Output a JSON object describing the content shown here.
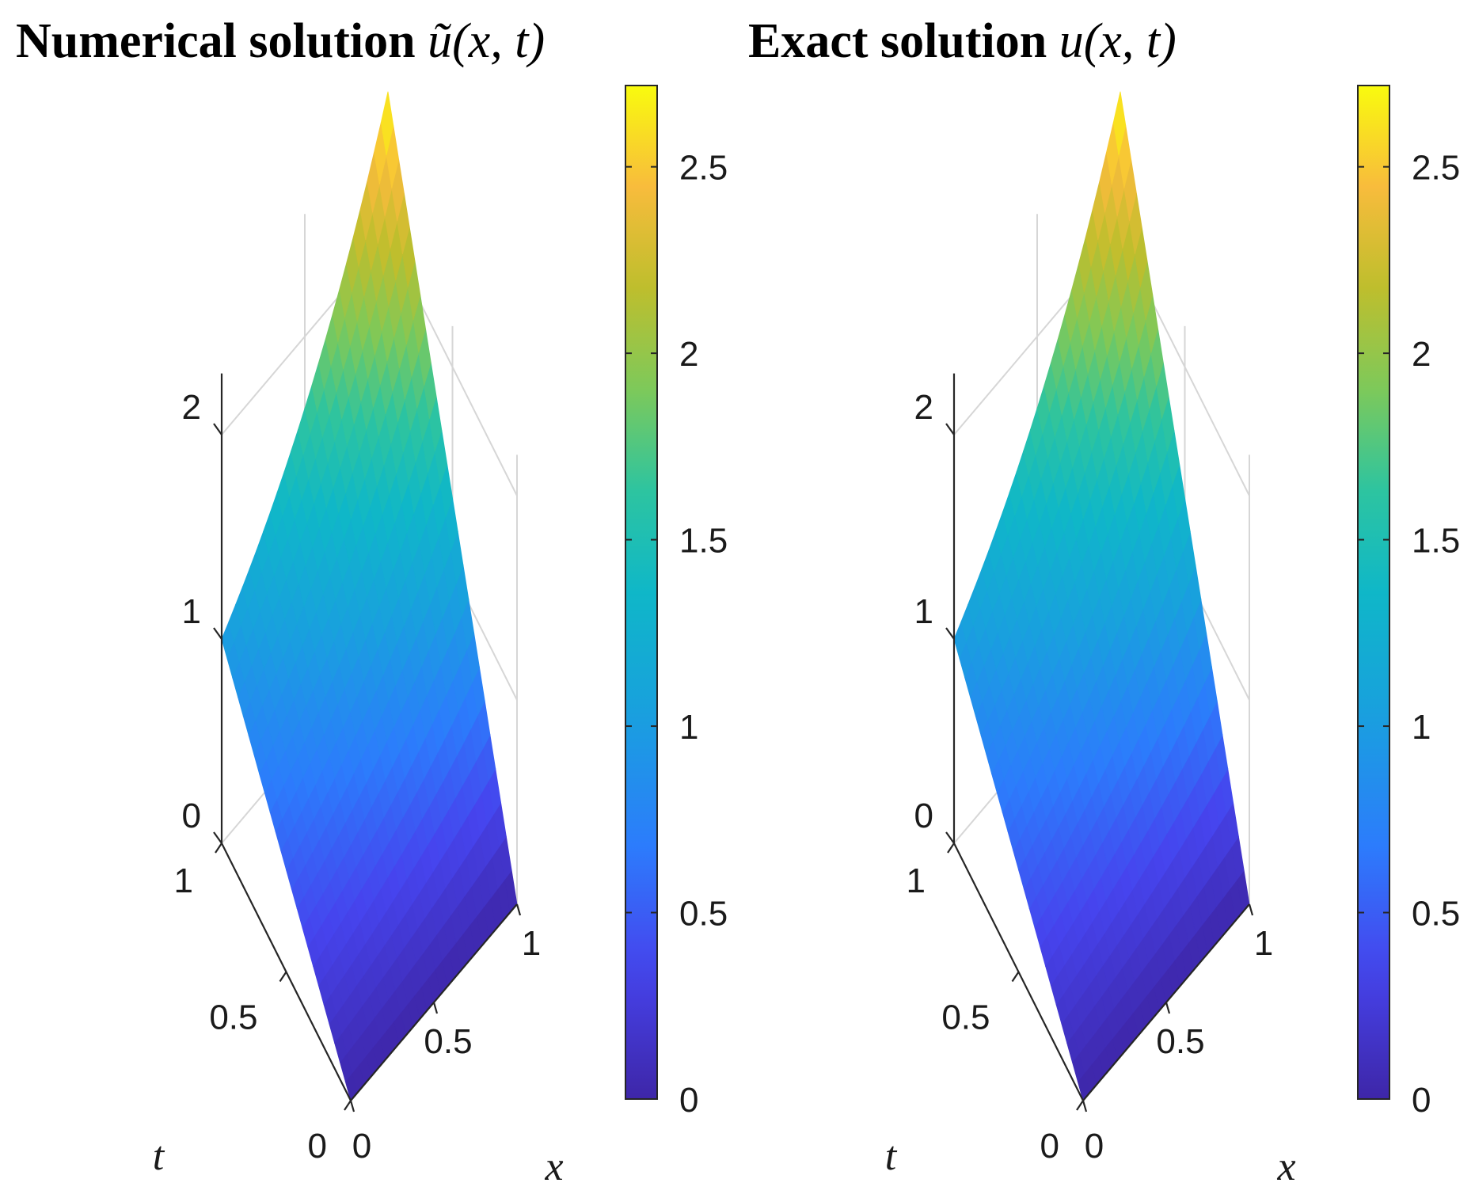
{
  "chart_data": [
    {
      "type": "surface",
      "title": {
        "text": "Numerical solution",
        "symbol": "ũ",
        "args": "(x, t)"
      },
      "x_label": "x",
      "t_label": "t",
      "x_ticks": [
        "0",
        "0.5",
        "1"
      ],
      "t_ticks": [
        "0",
        "0.5",
        "1"
      ],
      "z_ticks": [
        "0",
        "1",
        "2"
      ],
      "z_range": [
        0,
        2.718
      ],
      "colorbar": {
        "ticks": [
          "0",
          "0.5",
          "1",
          "1.5",
          "2",
          "2.5"
        ],
        "range": [
          0,
          2.718
        ],
        "colormap": "parula"
      },
      "function": "t * exp(x)",
      "surface_points": [
        {
          "x": 0,
          "t": 0,
          "u": 0
        },
        {
          "x": 1,
          "t": 0,
          "u": 0
        },
        {
          "x": 0,
          "t": 1,
          "u": 1
        },
        {
          "x": 1,
          "t": 1,
          "u": 2.718
        }
      ],
      "grid": true,
      "colors": {
        "low": "#3e26a8",
        "mid": "#12b5cb",
        "high": "#f9fb0e"
      }
    },
    {
      "type": "surface",
      "title": {
        "text": "Exact solution",
        "symbol": "u",
        "args": "(x, t)"
      },
      "x_label": "x",
      "t_label": "t",
      "x_ticks": [
        "0",
        "0.5",
        "1"
      ],
      "t_ticks": [
        "0",
        "0.5",
        "1"
      ],
      "z_ticks": [
        "0",
        "1",
        "2"
      ],
      "z_range": [
        0,
        2.718
      ],
      "colorbar": {
        "ticks": [
          "0",
          "0.5",
          "1",
          "1.5",
          "2",
          "2.5"
        ],
        "range": [
          0,
          2.718
        ],
        "colormap": "parula"
      },
      "function": "t * exp(x)",
      "surface_points": [
        {
          "x": 0,
          "t": 0,
          "u": 0
        },
        {
          "x": 1,
          "t": 0,
          "u": 0
        },
        {
          "x": 0,
          "t": 1,
          "u": 1
        },
        {
          "x": 1,
          "t": 1,
          "u": 2.718
        }
      ],
      "grid": true,
      "colors": {
        "low": "#3e26a8",
        "mid": "#12b5cb",
        "high": "#f9fb0e"
      }
    }
  ]
}
